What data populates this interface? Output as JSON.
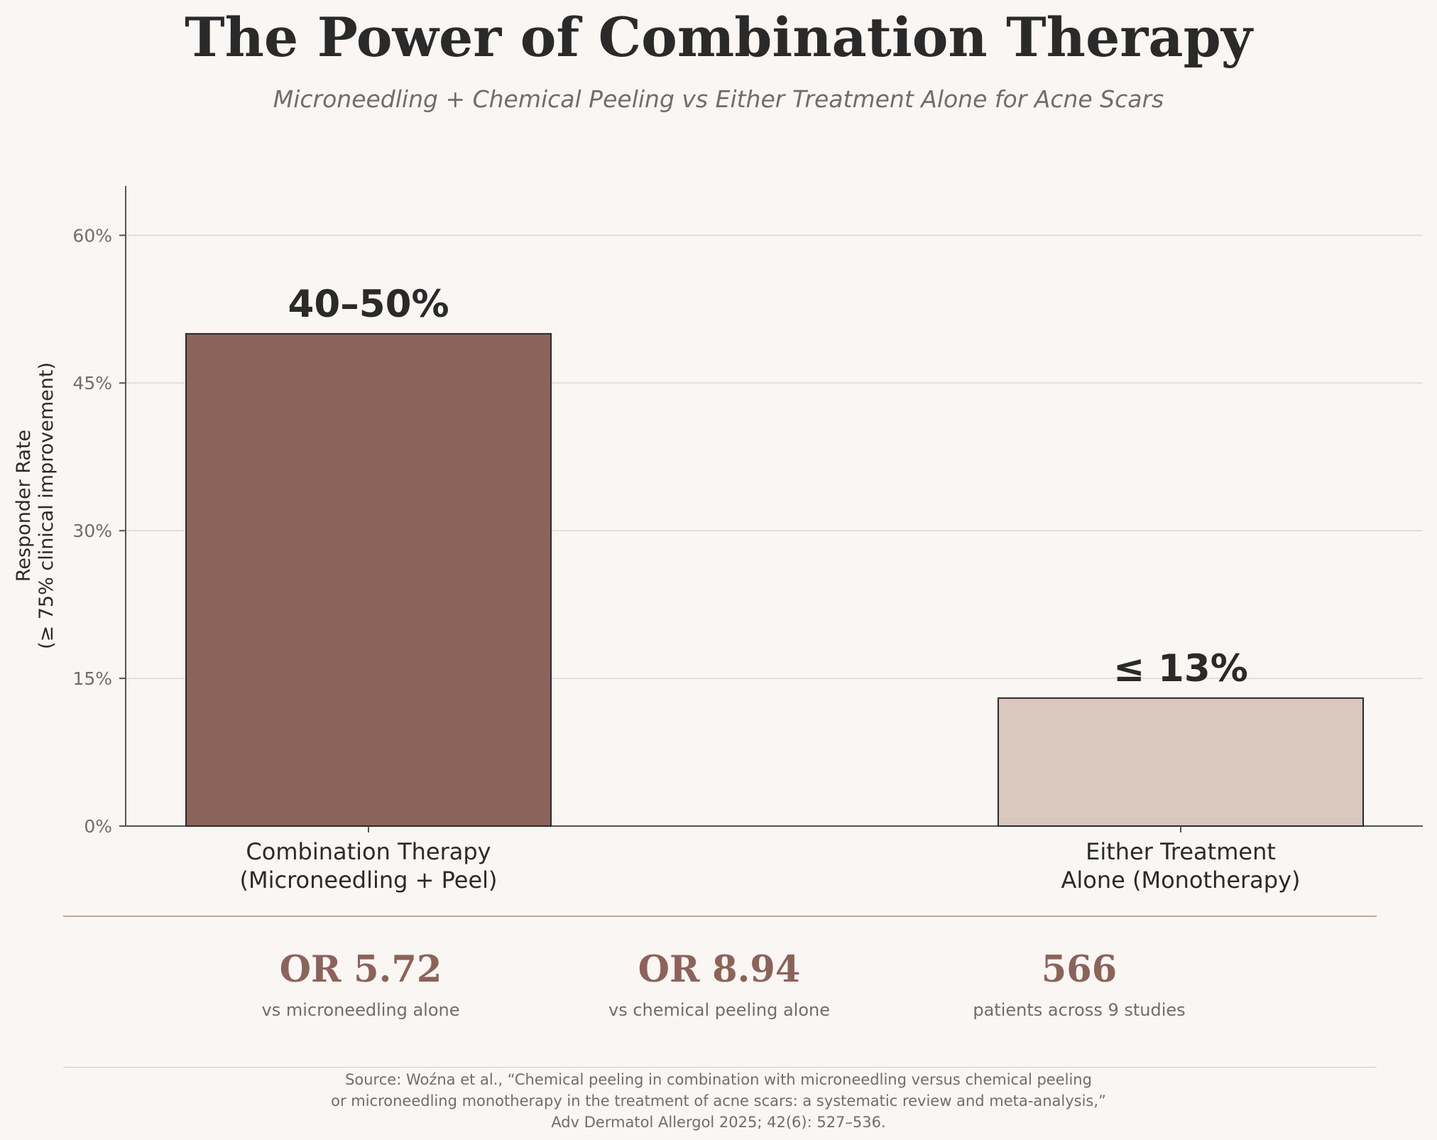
{
  "title": "The Power of Combination Therapy",
  "subtitle": "Microneedling + Chemical Peeling vs Either Treatment Alone for Acne Scars",
  "chart_data": {
    "type": "bar",
    "categories": [
      [
        "Combination Therapy",
        "(Microneedling + Peel)"
      ],
      [
        "Either Treatment",
        "Alone (Monotherapy)"
      ]
    ],
    "values": [
      50,
      13
    ],
    "data_labels": [
      "40–50%",
      "≤ 13%"
    ],
    "ylabel": [
      "Responder Rate",
      "(≥ 75% clinical improvement)"
    ],
    "ylim": [
      0,
      65
    ],
    "yticks": [
      0,
      15,
      30,
      45,
      60
    ],
    "ytick_labels": [
      "0%",
      "15%",
      "30%",
      "45%",
      "60%"
    ],
    "grid": "horizontal",
    "colors": [
      "#8c635a",
      "#dac7bd"
    ],
    "edge_color": "#2a2a2a"
  },
  "stats": [
    {
      "value": "OR 5.72",
      "label": "vs microneedling alone"
    },
    {
      "value": "OR 8.94",
      "label": "vs chemical peeling alone"
    },
    {
      "value": "566",
      "label": "patients across 9 studies"
    }
  ],
  "source": [
    "Source: Woźna et al., “Chemical peeling in combination with microneedling versus chemical peeling",
    "or microneedling monotherapy in the treatment of acne scars: a systematic review and meta-analysis,”",
    "Adv Dermatol Allergol 2025; 42(6): 527–536."
  ]
}
